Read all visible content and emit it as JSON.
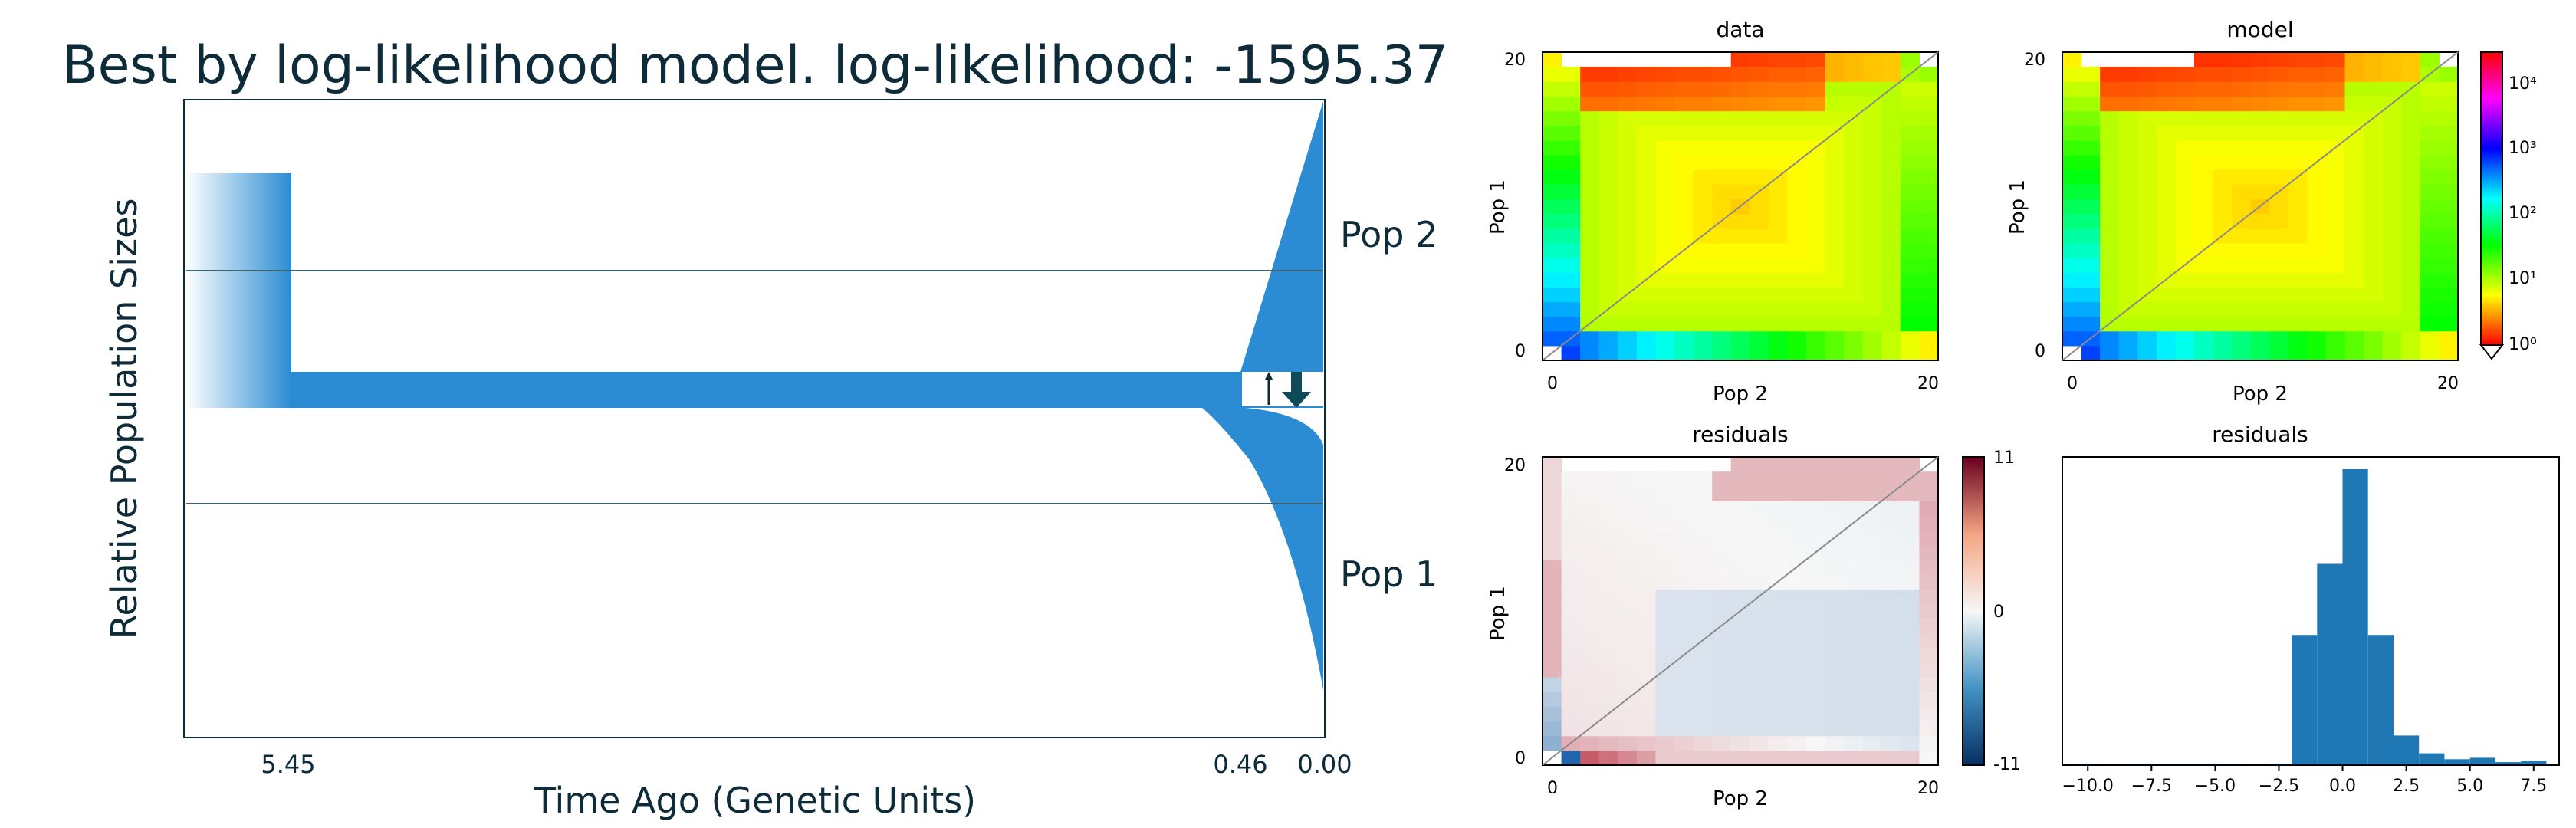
{
  "chart_data": [
    {
      "type": "area",
      "title": "Best by log-likelihood model. log-likelihood: -1595.37",
      "xlabel": "Time Ago (Genetic Units)",
      "ylabel": "Relative Population Sizes",
      "x_ticks": [
        "5.45",
        "0.46",
        "0.00"
      ],
      "populations": [
        {
          "name": "Pop 2"
        },
        {
          "name": "Pop 1"
        }
      ],
      "events": [
        {
          "time": 5.45,
          "kind": "size change"
        },
        {
          "time": 0.46,
          "kind": "split with migration"
        }
      ],
      "color": "#2b8cd4"
    },
    {
      "type": "heatmap",
      "title": "data",
      "xlabel": "Pop 2",
      "ylabel": "Pop 1",
      "x_ticks": [
        "0",
        "20"
      ],
      "y_ticks": [
        "0",
        "20"
      ],
      "colormap": "hsv",
      "scale": "log"
    },
    {
      "type": "heatmap",
      "title": "model",
      "xlabel": "Pop 2",
      "ylabel": "Pop 1",
      "x_ticks": [
        "0",
        "20"
      ],
      "y_ticks": [
        "0",
        "20"
      ],
      "colorbar": {
        "ticks": [
          "10⁴",
          "10³",
          "10²",
          "10¹",
          "10⁰"
        ],
        "scale": "log"
      }
    },
    {
      "type": "heatmap",
      "title": "residuals",
      "xlabel": "Pop 2",
      "ylabel": "Pop 1",
      "x_ticks": [
        "0",
        "20"
      ],
      "y_ticks": [
        "0",
        "20"
      ],
      "colormap": "RdBu_r",
      "colorbar": {
        "ticks": [
          "11",
          "0",
          "-11"
        ]
      }
    },
    {
      "type": "bar",
      "title": "residuals",
      "x_ticks": [
        "−10.0",
        "−7.5",
        "−5.0",
        "−2.5",
        "0.0",
        "2.5",
        "5.0",
        "7.5"
      ],
      "xlim": [
        -11,
        8.5
      ],
      "ylim": [
        0,
        1
      ],
      "bins": [
        {
          "x0": -10.5,
          "x1": -9.5,
          "v": 0.004
        },
        {
          "x0": -8.5,
          "x1": -4.0,
          "v": 0.004
        },
        {
          "x0": -3.0,
          "x1": -2.0,
          "v": 0.005
        },
        {
          "x0": -2.0,
          "x1": -1.0,
          "v": 0.44
        },
        {
          "x0": -1.0,
          "x1": 0.0,
          "v": 0.68
        },
        {
          "x0": 0.0,
          "x1": 1.0,
          "v": 1.0
        },
        {
          "x0": 1.0,
          "x1": 2.0,
          "v": 0.44
        },
        {
          "x0": 2.0,
          "x1": 3.0,
          "v": 0.1
        },
        {
          "x0": 3.0,
          "x1": 4.0,
          "v": 0.04
        },
        {
          "x0": 4.0,
          "x1": 5.0,
          "v": 0.02
        },
        {
          "x0": 5.0,
          "x1": 6.0,
          "v": 0.025
        },
        {
          "x0": 6.0,
          "x1": 7.0,
          "v": 0.01
        },
        {
          "x0": 7.0,
          "x1": 8.0,
          "v": 0.015
        }
      ]
    }
  ]
}
